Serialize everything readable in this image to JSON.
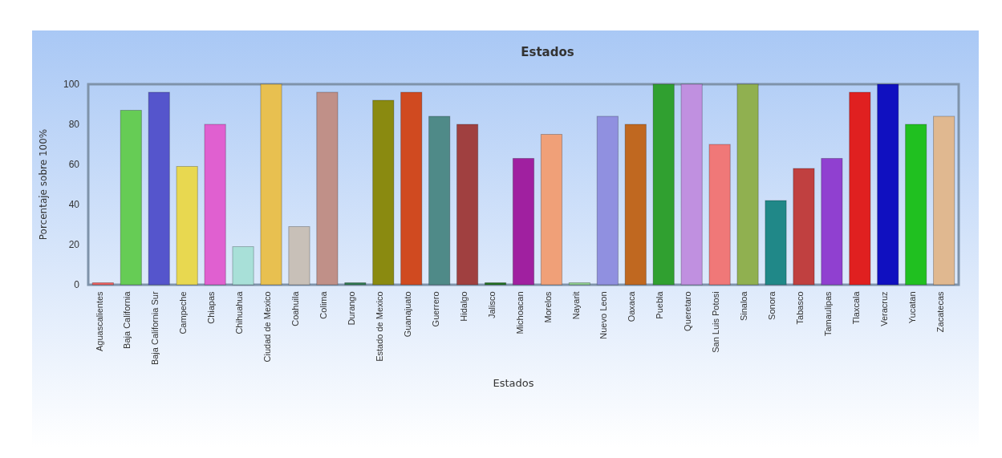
{
  "chart_data": {
    "type": "bar",
    "title": "Estados",
    "xlabel": "Estados",
    "ylabel": "Porcentaje sobre 100%",
    "categories": [
      "Aguascalientes",
      "Baja California",
      "Baja California Sur",
      "Campeche",
      "Chiapas",
      "Chihuahua",
      "Ciudad de Mexico",
      "Coahuila",
      "Colima",
      "Durango",
      "Estado de Mexico",
      "Guanajuato",
      "Guerrero",
      "Hidalgo",
      "Jalisco",
      "Michoacan",
      "Morelos",
      "Nayarit",
      "Nuevo Leon",
      "Oaxaca",
      "Puebla",
      "Queretaro",
      "San Luis Potosi",
      "Sinaloa",
      "Sonora",
      "Tabasco",
      "Tamaulipas",
      "Tlaxcala",
      "Veracruz",
      "Yucatan",
      "Zacatecas"
    ],
    "values": [
      1,
      87,
      96,
      59,
      80,
      19,
      100,
      29,
      96,
      1,
      92,
      96,
      84,
      80,
      1,
      63,
      75,
      1,
      84,
      80,
      100,
      100,
      70,
      100,
      42,
      58,
      63,
      96,
      100,
      80,
      84
    ],
    "colors": [
      "#f06060",
      "#66cc55",
      "#5555cc",
      "#e8d850",
      "#e060d0",
      "#a8e0d8",
      "#e8c050",
      "#c8c0b8",
      "#c09088",
      "#2f7a50",
      "#8a8a10",
      "#d04a20",
      "#4f8a88",
      "#a04040",
      "#207020",
      "#a020a0",
      "#f0a078",
      "#90d090",
      "#9090e0",
      "#c06820",
      "#30a030",
      "#c090e0",
      "#f07878",
      "#90b050",
      "#208888",
      "#c04040",
      "#9040d0",
      "#e02020",
      "#1010c0",
      "#20c020",
      "#e0b890"
    ],
    "ylim": [
      0,
      100
    ],
    "yticks": [
      0,
      20,
      40,
      60,
      80,
      100
    ],
    "grid": false
  }
}
